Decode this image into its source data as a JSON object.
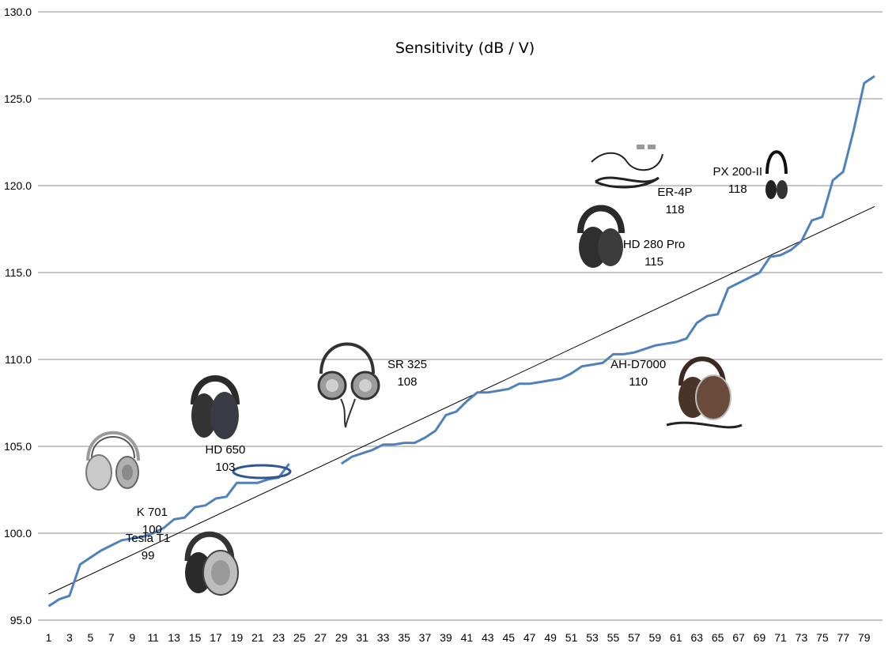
{
  "chart_data": {
    "type": "line",
    "title": "Sensitivity (dB / V)",
    "xlabel": "",
    "ylabel": "",
    "ylim": [
      95,
      130
    ],
    "xlim": [
      1,
      80
    ],
    "grid": "horizontal",
    "legend": "none",
    "ytick_labels": [
      "95.0",
      "100.0",
      "105.0",
      "110.0",
      "115.0",
      "120.0",
      "125.0",
      "130.0"
    ],
    "xtick_labels": [
      "1",
      "3",
      "5",
      "7",
      "9",
      "11",
      "13",
      "15",
      "17",
      "19",
      "21",
      "23",
      "25",
      "27",
      "29",
      "31",
      "33",
      "35",
      "37",
      "39",
      "41",
      "43",
      "45",
      "47",
      "49",
      "51",
      "53",
      "55",
      "57",
      "59",
      "61",
      "63",
      "65",
      "67",
      "69",
      "71",
      "73",
      "75",
      "77",
      "79"
    ],
    "series": [
      {
        "color": "#4f81bd",
        "x": [
          1,
          2,
          3,
          4,
          5,
          6,
          7,
          8,
          9,
          10,
          11,
          12,
          13,
          14,
          15,
          16,
          17,
          18,
          19,
          20,
          21,
          22,
          23,
          24,
          29,
          30,
          31,
          32,
          33,
          34,
          35,
          36,
          37,
          38,
          39,
          40,
          41,
          42,
          43,
          44,
          45,
          46,
          47,
          48,
          49,
          50,
          51,
          52,
          53,
          54,
          55,
          56,
          57,
          58,
          59,
          60,
          61,
          62,
          63,
          64,
          65,
          66,
          67,
          68,
          69,
          70,
          71,
          72,
          73,
          74,
          75,
          76,
          77,
          78,
          79,
          80
        ],
        "values": [
          95.8,
          96.2,
          96.4,
          98.2,
          98.6,
          99.0,
          99.3,
          99.6,
          99.7,
          99.8,
          100.0,
          100.3,
          100.8,
          100.9,
          101.5,
          101.6,
          102.0,
          102.1,
          102.9,
          102.9,
          102.9,
          103.1,
          103.2,
          104.0,
          104.0,
          104.4,
          104.6,
          104.8,
          105.1,
          105.1,
          105.2,
          105.2,
          105.5,
          105.9,
          106.8,
          107.0,
          107.6,
          108.1,
          108.1,
          108.2,
          108.3,
          108.6,
          108.6,
          108.7,
          108.8,
          108.9,
          109.2,
          109.6,
          109.7,
          109.8,
          110.3,
          110.3,
          110.4,
          110.6,
          110.8,
          110.9,
          111.0,
          111.2,
          112.1,
          112.5,
          112.6,
          114.1,
          114.4,
          114.7,
          115.0,
          115.9,
          116.0,
          116.3,
          116.8,
          118.0,
          118.2,
          120.3,
          120.8,
          123.2,
          125.9,
          126.3
        ]
      }
    ],
    "trendline": {
      "color": "#000000",
      "x": [
        1,
        80
      ],
      "values": [
        96.5,
        118.8
      ]
    },
    "annotations": [
      {
        "name": "K 701",
        "value": "100",
        "x": 10.9,
        "y": 101.0
      },
      {
        "name": "Tesla T1",
        "value": "99",
        "x": 10.5,
        "y": 99.5
      },
      {
        "name": "HD 650",
        "value": "103",
        "x": 17.9,
        "y": 104.6
      },
      {
        "name": "SR 325",
        "value": "108",
        "x": 35.3,
        "y": 109.5
      },
      {
        "name": "AH-D7000",
        "value": "110",
        "x": 57.4,
        "y": 109.5
      },
      {
        "name": "HD 280 Pro",
        "value": "115",
        "x": 58.9,
        "y": 116.4
      },
      {
        "name": "ER-4P",
        "value": "118",
        "x": 60.9,
        "y": 119.4
      },
      {
        "name": "PX 200-II",
        "value": "118",
        "x": 66.9,
        "y": 120.6
      }
    ]
  }
}
